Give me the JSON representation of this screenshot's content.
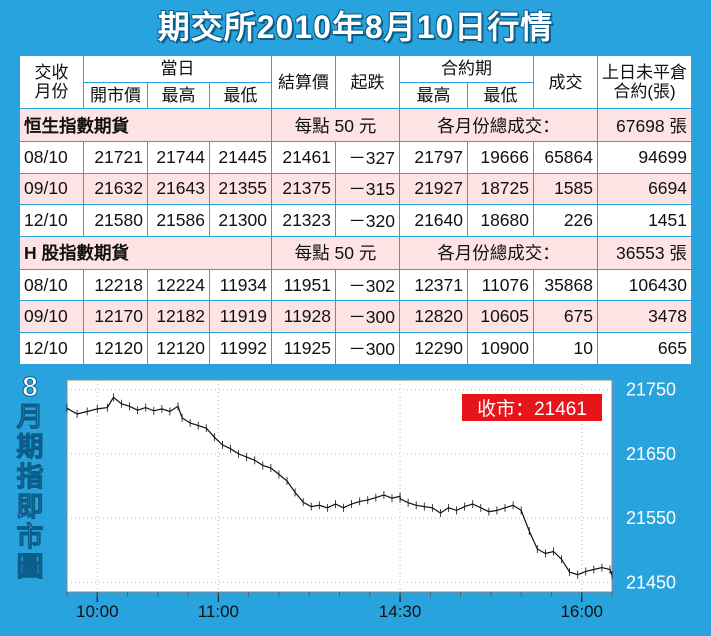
{
  "title": "期交所2010年8月10日行情",
  "headers": {
    "month_line1": "交收",
    "month_line2": "月份",
    "day_group": "當日",
    "open": "開市價",
    "high": "最高",
    "low": "最低",
    "settle": "結算價",
    "change": "起跌",
    "contract_group": "合約期",
    "contract_high": "最高",
    "contract_low": "最低",
    "volume": "成交",
    "oi_line1": "上日未平倉",
    "oi_line2": "合約(張)"
  },
  "sections": [
    {
      "name": "恒生指數期貨",
      "point_value": "每點 50 元",
      "total_label": "各月份總成交：",
      "total_value": "67698 張",
      "rows": [
        [
          "08/10",
          "21721",
          "21744",
          "21445",
          "21461",
          "－327",
          "21797",
          "19666",
          "65864",
          "94699"
        ],
        [
          "09/10",
          "21632",
          "21643",
          "21355",
          "21375",
          "－315",
          "21927",
          "18725",
          "1585",
          "6694"
        ],
        [
          "12/10",
          "21580",
          "21586",
          "21300",
          "21323",
          "－320",
          "21640",
          "18680",
          "226",
          "1451"
        ]
      ]
    },
    {
      "name": "H 股指數期貨",
      "point_value": "每點 50 元",
      "total_label": "各月份總成交：",
      "total_value": "36553 張",
      "rows": [
        [
          "08/10",
          "12218",
          "12224",
          "11934",
          "11951",
          "－302",
          "12371",
          "11076",
          "35868",
          "106430"
        ],
        [
          "09/10",
          "12170",
          "12182",
          "11919",
          "11928",
          "－300",
          "12820",
          "10605",
          "675",
          "3478"
        ],
        [
          "12/10",
          "12120",
          "12120",
          "11992",
          "11925",
          "－300",
          "12290",
          "10900",
          "10",
          "665"
        ]
      ]
    }
  ],
  "chart_label": "8月期指即市圖",
  "chart_label_chars": [
    "8",
    "月",
    "期",
    "指",
    "即",
    "市",
    "圖"
  ],
  "chart_data": {
    "type": "line",
    "close_label": "收市：21461",
    "x_ticks": [
      "10:00",
      "11:00",
      "14:30",
      "16:00"
    ],
    "y_ticks": [
      21750,
      21650,
      21550,
      21450
    ],
    "ylim": [
      21435,
      21765
    ],
    "x_range": [
      "09:45",
      "16:15"
    ],
    "grid": true,
    "colors": {
      "line": "#111111",
      "close_box": "#e8141b",
      "grid": "#bbbbbb"
    },
    "series": [
      {
        "values": [
          [
            "09:45",
            21721
          ],
          [
            "09:50",
            21712
          ],
          [
            "09:55",
            21716
          ],
          [
            "10:00",
            21720
          ],
          [
            "10:05",
            21722
          ],
          [
            "10:08",
            21738
          ],
          [
            "10:12",
            21728
          ],
          [
            "10:16",
            21724
          ],
          [
            "10:20",
            21718
          ],
          [
            "10:24",
            21722
          ],
          [
            "10:28",
            21717
          ],
          [
            "10:32",
            21720
          ],
          [
            "10:36",
            21716
          ],
          [
            "10:40",
            21724
          ],
          [
            "10:42",
            21706
          ],
          [
            "10:46",
            21698
          ],
          [
            "10:50",
            21694
          ],
          [
            "10:54",
            21690
          ],
          [
            "10:58",
            21676
          ],
          [
            "11:02",
            21664
          ],
          [
            "11:06",
            21658
          ],
          [
            "11:10",
            21650
          ],
          [
            "11:14",
            21645
          ],
          [
            "11:18",
            21640
          ],
          [
            "11:22",
            21632
          ],
          [
            "11:26",
            21628
          ],
          [
            "11:30",
            21618
          ],
          [
            "11:34",
            21608
          ],
          [
            "11:38",
            21590
          ],
          [
            "11:42",
            21575
          ],
          [
            "11:46",
            21568
          ],
          [
            "11:50",
            21570
          ],
          [
            "11:54",
            21566
          ],
          [
            "11:58",
            21572
          ],
          [
            "12:02",
            21566
          ],
          [
            "12:06",
            21572
          ],
          [
            "12:10",
            21576
          ],
          [
            "12:14",
            21578
          ],
          [
            "12:18",
            21582
          ],
          [
            "12:22",
            21586
          ],
          [
            "12:26",
            21581
          ],
          [
            "12:30",
            21584
          ],
          [
            "14:30",
            21580
          ],
          [
            "14:34",
            21574
          ],
          [
            "14:38",
            21570
          ],
          [
            "14:42",
            21568
          ],
          [
            "14:46",
            21566
          ],
          [
            "14:50",
            21558
          ],
          [
            "14:54",
            21566
          ],
          [
            "14:58",
            21562
          ],
          [
            "15:02",
            21568
          ],
          [
            "15:06",
            21572
          ],
          [
            "15:10",
            21566
          ],
          [
            "15:14",
            21560
          ],
          [
            "15:18",
            21562
          ],
          [
            "15:22",
            21566
          ],
          [
            "15:26",
            21570
          ],
          [
            "15:30",
            21562
          ],
          [
            "15:34",
            21530
          ],
          [
            "15:38",
            21502
          ],
          [
            "15:42",
            21495
          ],
          [
            "15:46",
            21498
          ],
          [
            "15:50",
            21486
          ],
          [
            "15:54",
            21466
          ],
          [
            "15:58",
            21462
          ],
          [
            "16:02",
            21467
          ],
          [
            "16:06",
            21470
          ],
          [
            "16:10",
            21473
          ],
          [
            "16:14",
            21470
          ],
          [
            "16:15",
            21461
          ]
        ]
      }
    ]
  }
}
